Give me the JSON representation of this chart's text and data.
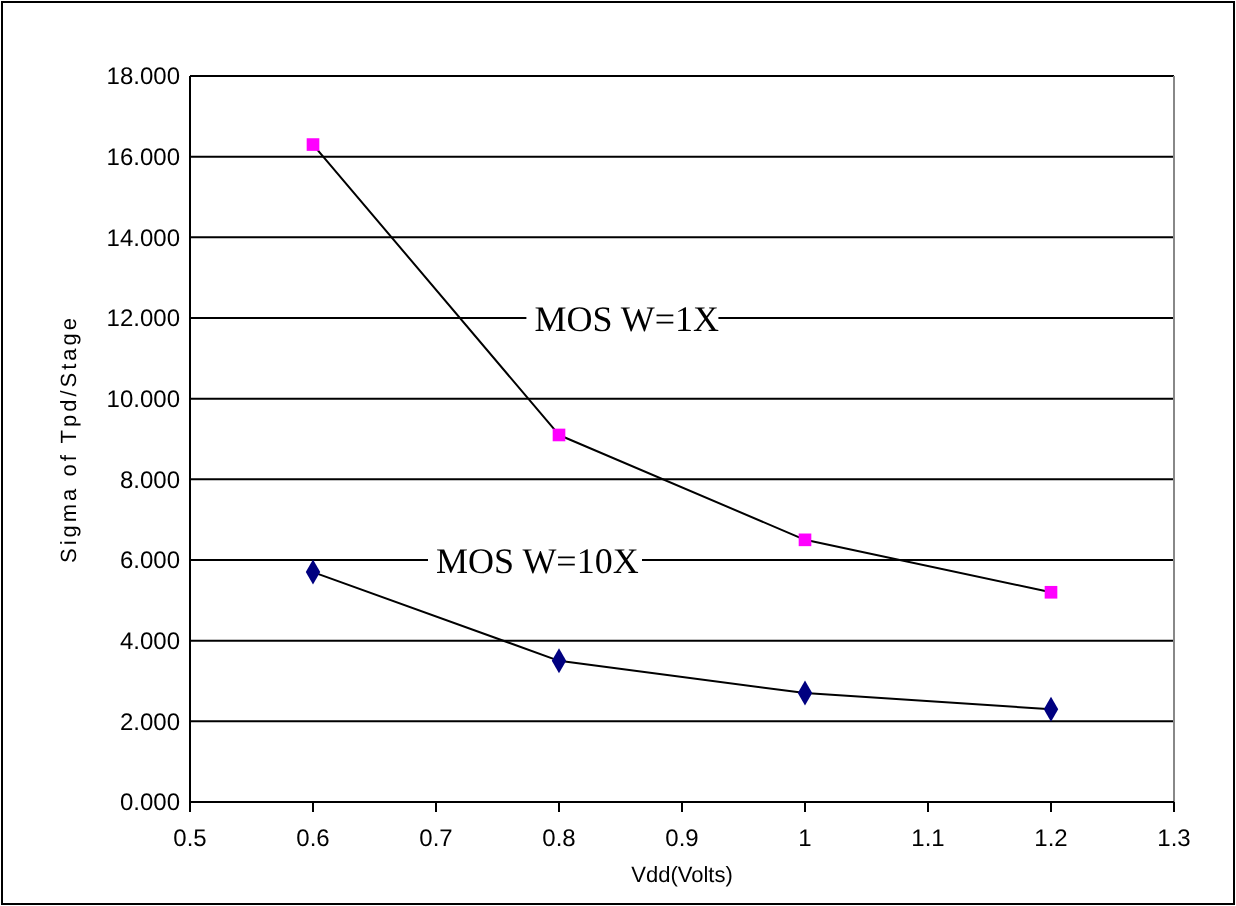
{
  "chart_data": {
    "type": "line",
    "xlabel": "Vdd(Volts)",
    "ylabel": "Sigma of Tpd/Stage",
    "x": [
      0.6,
      0.8,
      1.0,
      1.2
    ],
    "series": [
      {
        "name": "MOS W=1X",
        "color": "#ff00ff",
        "marker": "square",
        "values": [
          16.3,
          9.1,
          6.5,
          5.2
        ]
      },
      {
        "name": "MOS W=10X",
        "color": "#000080",
        "marker": "diamond",
        "values": [
          5.7,
          3.5,
          2.7,
          2.3
        ]
      }
    ],
    "xlim": [
      0.5,
      1.3
    ],
    "xticks": [
      0.5,
      0.6,
      0.7,
      0.8,
      0.9,
      1,
      1.1,
      1.2,
      1.3
    ],
    "ylim": [
      0,
      18
    ],
    "yticks": [
      {
        "value": 0,
        "label": "0.000"
      },
      {
        "value": 2,
        "label": "2.000"
      },
      {
        "value": 4,
        "label": "4.000"
      },
      {
        "value": 6,
        "label": "6.000"
      },
      {
        "value": 8,
        "label": "8.000"
      },
      {
        "value": 10,
        "label": "10.000"
      },
      {
        "value": 12,
        "label": "12.000"
      },
      {
        "value": 14,
        "label": "14.000"
      },
      {
        "value": 16,
        "label": "16.000"
      },
      {
        "value": 18,
        "label": "18.000"
      }
    ],
    "grid": "y",
    "line_style": "solid"
  }
}
